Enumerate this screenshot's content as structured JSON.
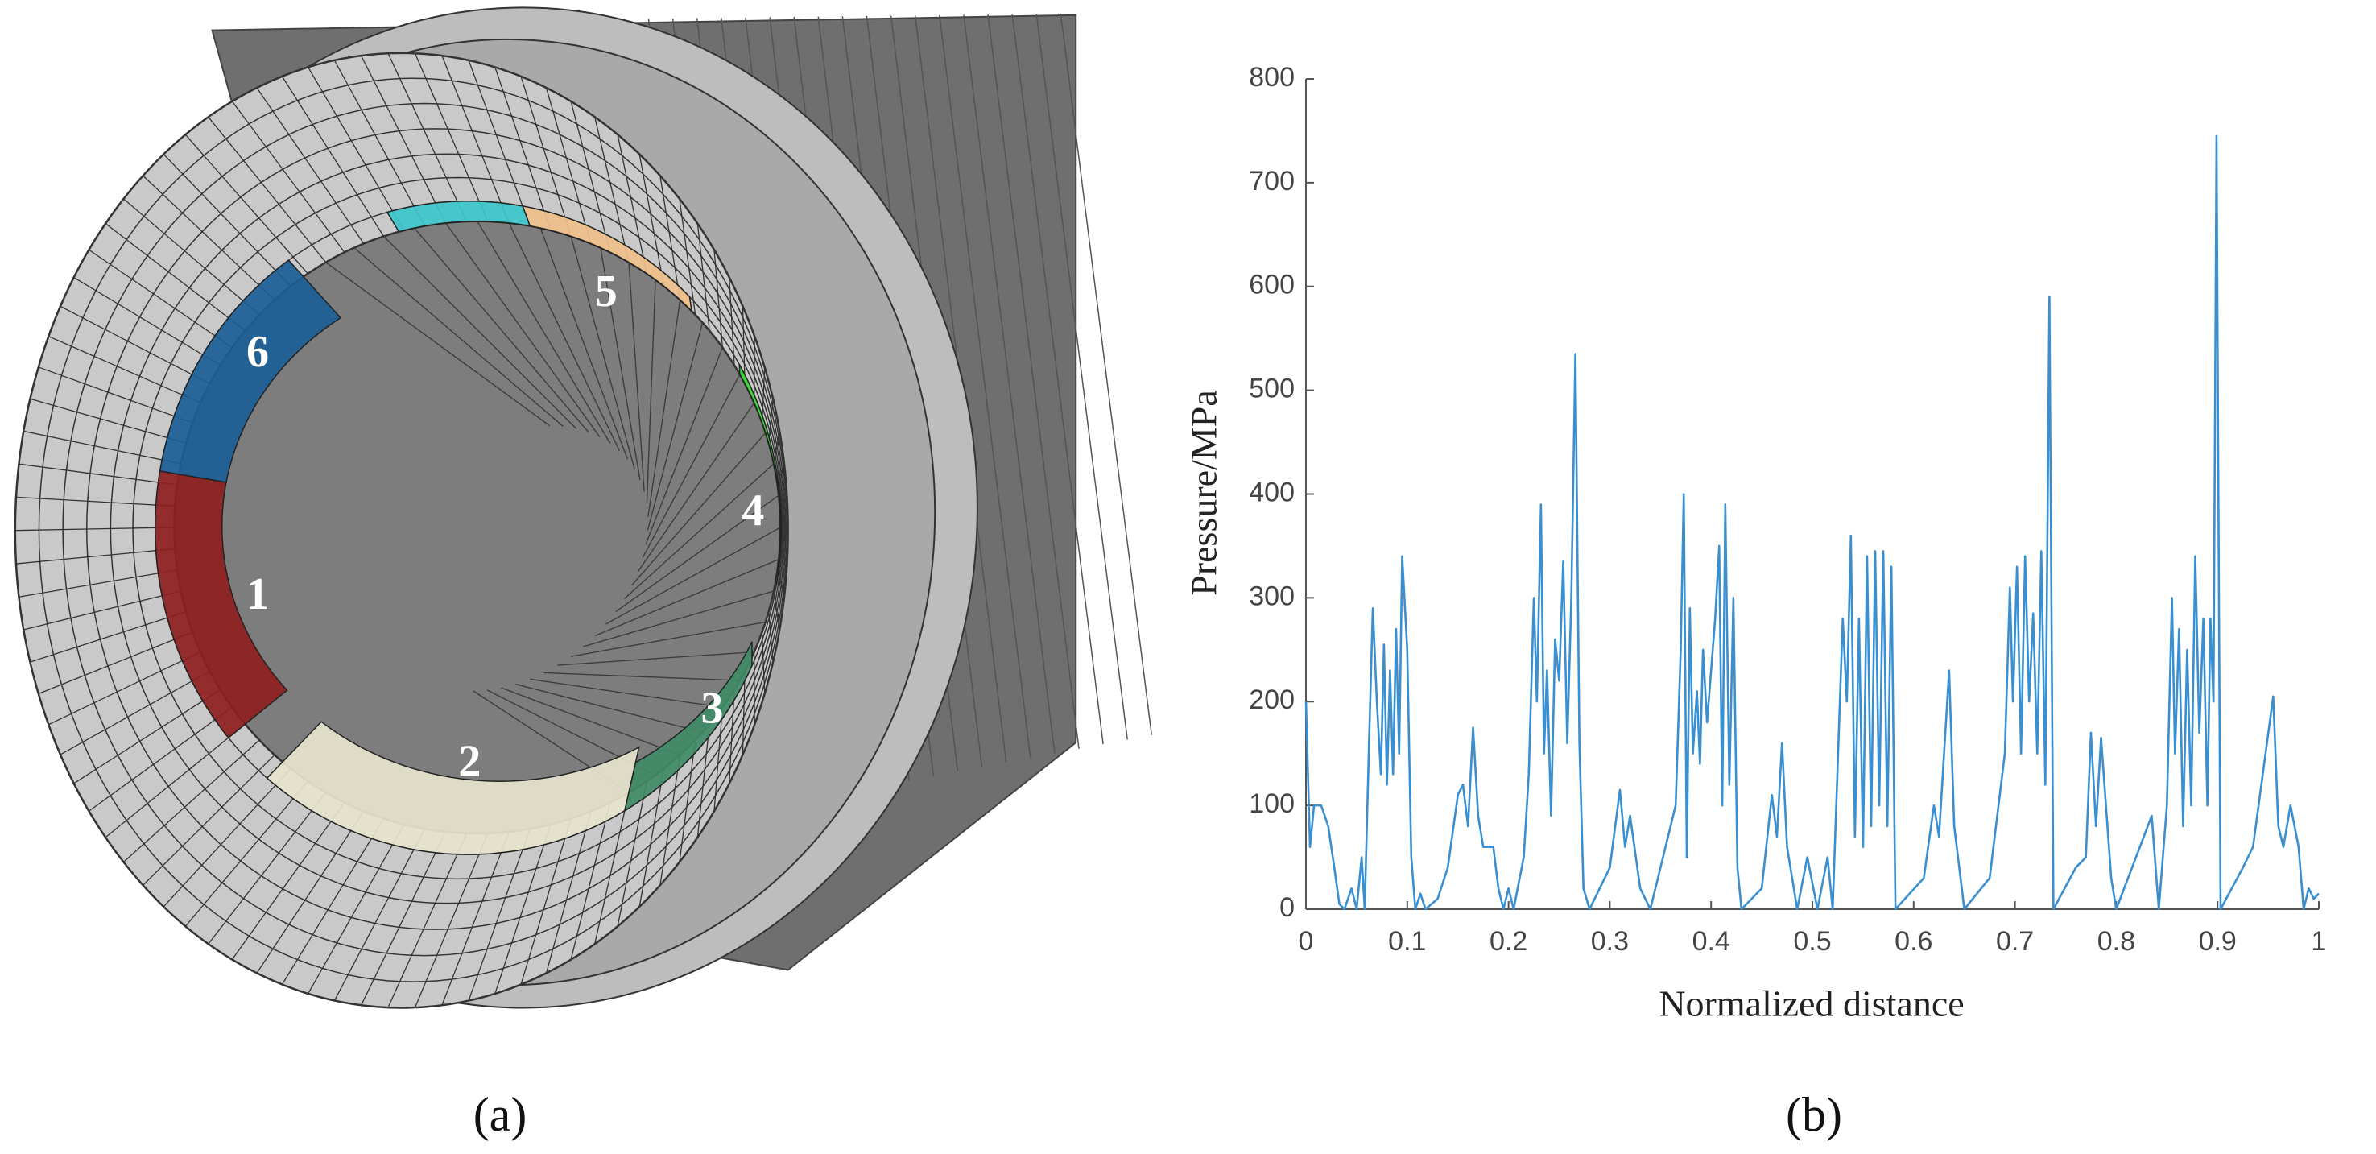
{
  "figure_a": {
    "labels": [
      "1",
      "2",
      "3",
      "4",
      "5",
      "6"
    ],
    "caption": "(a)"
  },
  "chart_data": {
    "type": "line",
    "xlabel": "Normalized distance",
    "ylabel": "Pressure/MPa",
    "caption": "(b)",
    "x": [
      0,
      0.004,
      0.008,
      0.015,
      0.022,
      0.028,
      0.033,
      0.038,
      0.045,
      0.05,
      0.055,
      0.058,
      0.062,
      0.066,
      0.07,
      0.074,
      0.077,
      0.08,
      0.083,
      0.086,
      0.089,
      0.092,
      0.095,
      0.1,
      0.104,
      0.108,
      0.113,
      0.118,
      0.13,
      0.14,
      0.15,
      0.155,
      0.16,
      0.165,
      0.17,
      0.175,
      0.185,
      0.19,
      0.195,
      0.2,
      0.205,
      0.215,
      0.22,
      0.225,
      0.228,
      0.232,
      0.235,
      0.238,
      0.242,
      0.246,
      0.25,
      0.254,
      0.258,
      0.262,
      0.266,
      0.27,
      0.274,
      0.28,
      0.3,
      0.31,
      0.315,
      0.32,
      0.33,
      0.34,
      0.365,
      0.37,
      0.373,
      0.376,
      0.379,
      0.382,
      0.386,
      0.389,
      0.392,
      0.396,
      0.404,
      0.408,
      0.411,
      0.414,
      0.418,
      0.422,
      0.426,
      0.43,
      0.45,
      0.46,
      0.465,
      0.47,
      0.475,
      0.485,
      0.495,
      0.505,
      0.515,
      0.52,
      0.53,
      0.534,
      0.538,
      0.542,
      0.546,
      0.55,
      0.554,
      0.558,
      0.562,
      0.566,
      0.57,
      0.574,
      0.578,
      0.582,
      0.61,
      0.62,
      0.625,
      0.635,
      0.64,
      0.65,
      0.675,
      0.69,
      0.695,
      0.698,
      0.702,
      0.706,
      0.71,
      0.714,
      0.718,
      0.722,
      0.726,
      0.73,
      0.734,
      0.738,
      0.76,
      0.77,
      0.775,
      0.78,
      0.785,
      0.795,
      0.8,
      0.835,
      0.842,
      0.85,
      0.855,
      0.858,
      0.862,
      0.866,
      0.87,
      0.874,
      0.878,
      0.882,
      0.886,
      0.89,
      0.893,
      0.896,
      0.899,
      0.903,
      0.925,
      0.935,
      0.955,
      0.96,
      0.965,
      0.972,
      0.98,
      0.985,
      0.99,
      0.995,
      1
    ],
    "series": [
      {
        "color": "#3a8fd0",
        "values": [
          200,
          60,
          100,
          100,
          80,
          40,
          5,
          0,
          20,
          0,
          50,
          0,
          150,
          290,
          200,
          130,
          255,
          120,
          230,
          130,
          270,
          150,
          340,
          250,
          50,
          0,
          15,
          0,
          10,
          40,
          110,
          120,
          80,
          175,
          90,
          60,
          60,
          20,
          0,
          20,
          0,
          50,
          130,
          300,
          200,
          390,
          150,
          230,
          90,
          260,
          220,
          335,
          160,
          300,
          535,
          160,
          20,
          0,
          40,
          115,
          60,
          90,
          20,
          0,
          100,
          250,
          400,
          50,
          290,
          150,
          210,
          140,
          250,
          180,
          280,
          350,
          100,
          390,
          120,
          300,
          40,
          0,
          20,
          110,
          70,
          160,
          60,
          0,
          50,
          0,
          50,
          0,
          280,
          200,
          360,
          70,
          280,
          60,
          340,
          80,
          345,
          100,
          345,
          80,
          330,
          0,
          30,
          100,
          70,
          230,
          80,
          0,
          30,
          150,
          310,
          200,
          330,
          150,
          340,
          200,
          285,
          150,
          345,
          120,
          590,
          0,
          40,
          50,
          170,
          80,
          165,
          30,
          0,
          90,
          0,
          100,
          300,
          150,
          270,
          80,
          250,
          100,
          340,
          170,
          280,
          100,
          280,
          200,
          745,
          0,
          40,
          60,
          205,
          80,
          60,
          100,
          60,
          0,
          20,
          10,
          15
        ]
      }
    ],
    "xlim": [
      0,
      1
    ],
    "ylim": [
      0,
      800
    ],
    "xticks": [
      0,
      0.1,
      0.2,
      0.3,
      0.4,
      0.5,
      0.6,
      0.7,
      0.8,
      0.9,
      1
    ],
    "yticks": [
      0,
      100,
      200,
      300,
      400,
      500,
      600,
      700,
      800
    ]
  }
}
